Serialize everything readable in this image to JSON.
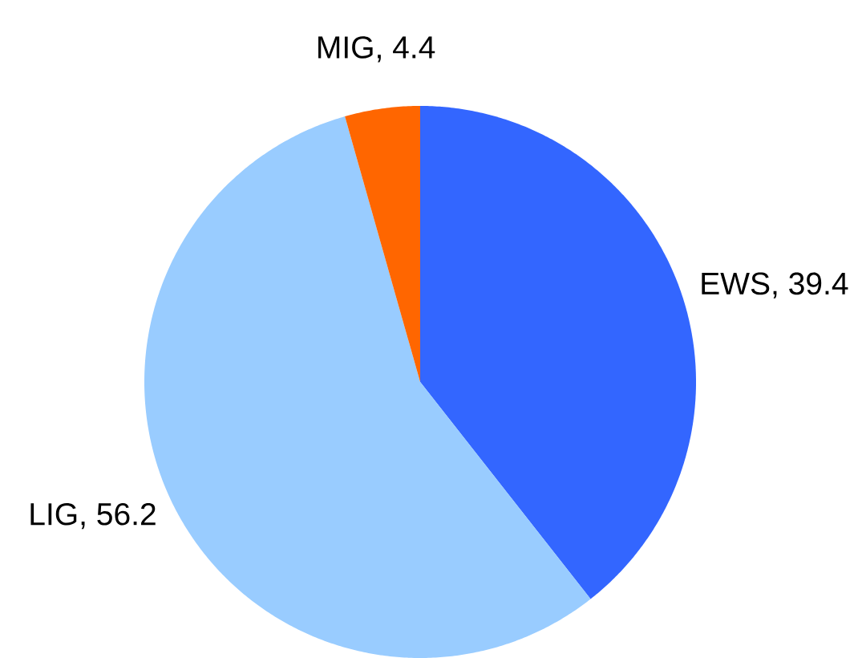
{
  "chart_data": {
    "type": "pie",
    "categories": [
      null,
      null,
      null
    ],
    "values": [
      39.4,
      56.2,
      4.4
    ],
    "value_labels": [
      "EWS, 39.4",
      "LIG, 56.2",
      "MIG, 4.4"
    ],
    "colors": [
      "#3366ff",
      "#99ccff",
      "#ff6600"
    ]
  }
}
